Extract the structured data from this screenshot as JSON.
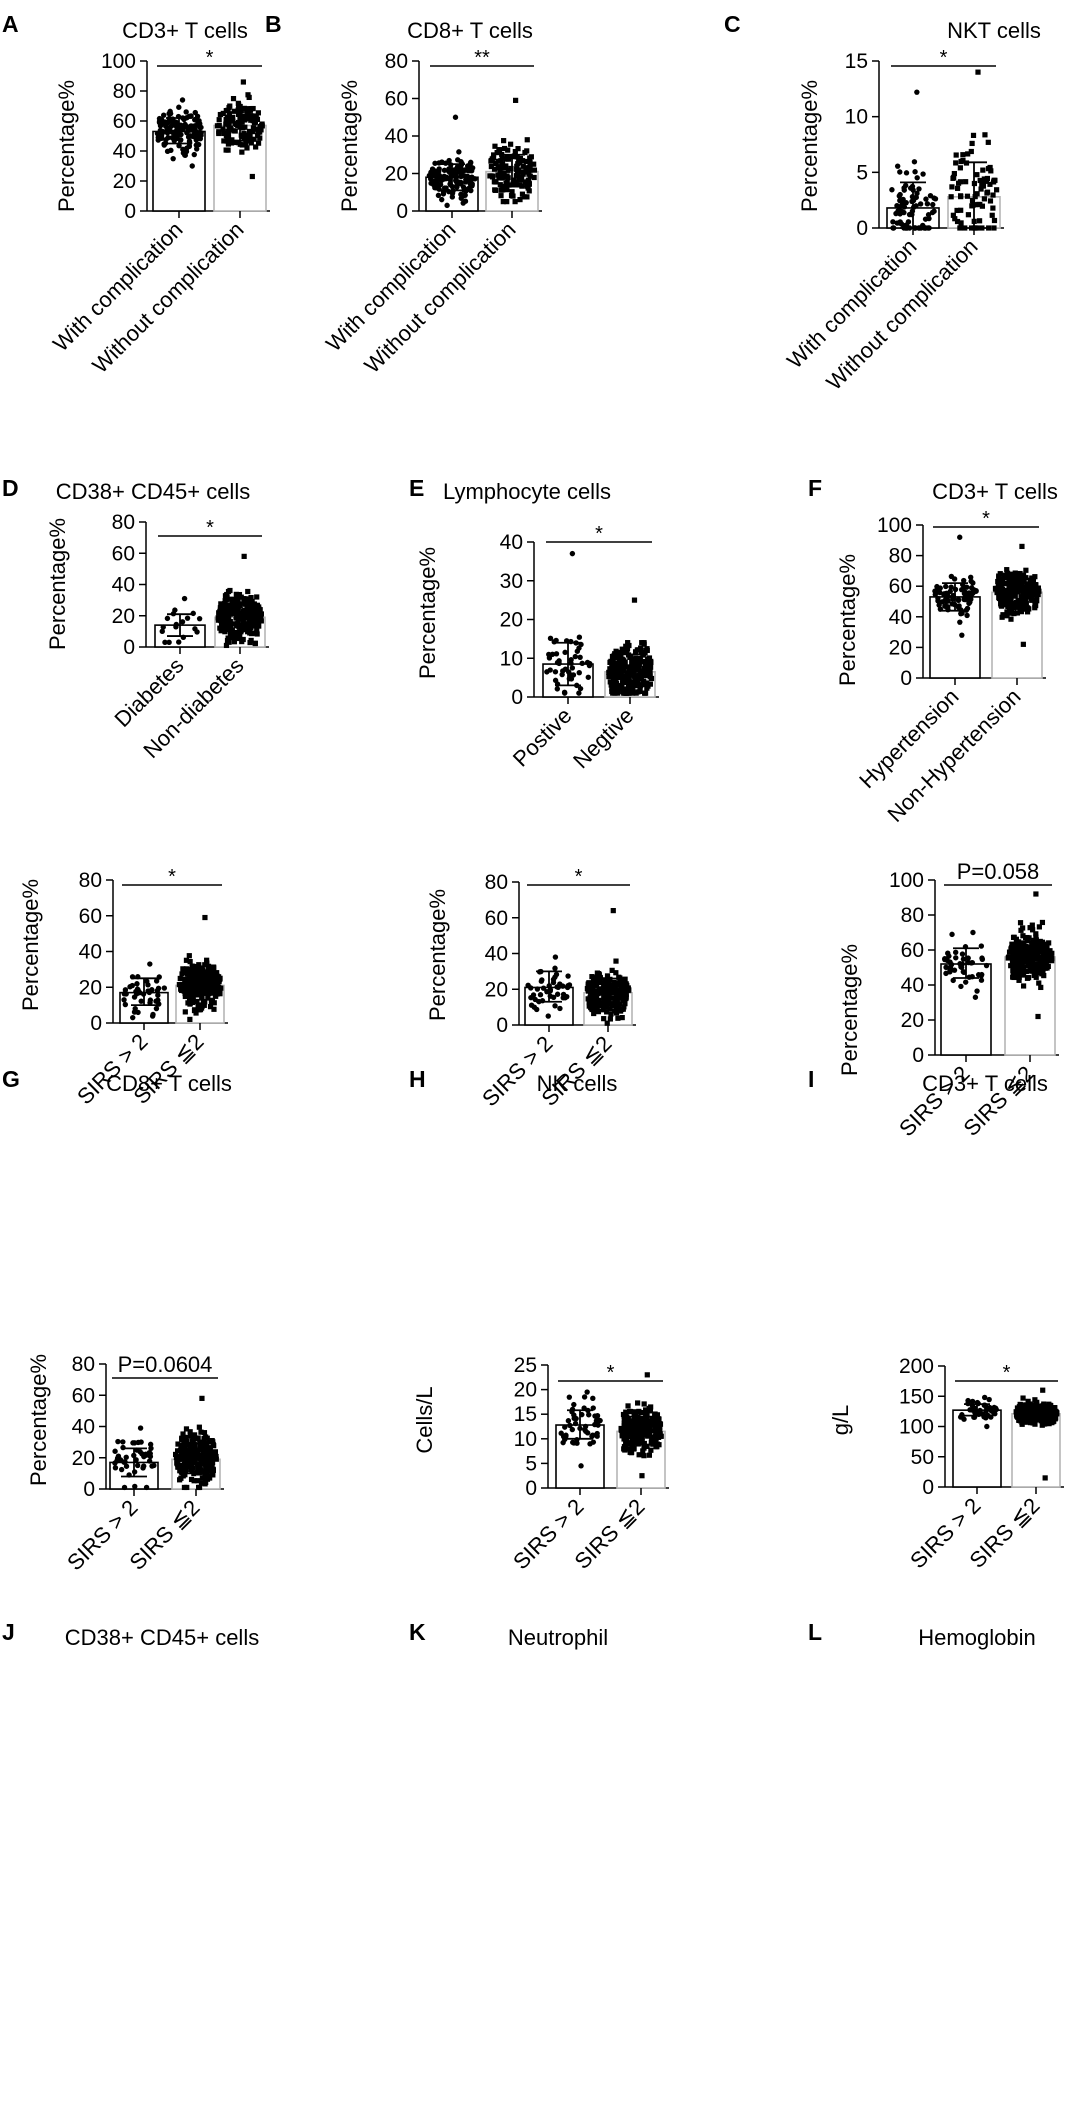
{
  "chart_data": [
    {
      "panel": "A",
      "type": "bar",
      "title": "CD3+ T cells",
      "ylabel": "Percentage%",
      "ylim": [
        0,
        100
      ],
      "yticks": [
        0,
        20,
        40,
        60,
        80,
        100
      ],
      "categories": [
        "With complication",
        "Without complication"
      ],
      "values": [
        53,
        57
      ],
      "sd_low": [
        45,
        47
      ],
      "sd_high": [
        62,
        66
      ],
      "points_range": [
        [
          30,
          74
        ],
        [
          23,
          86
        ]
      ],
      "points_n": [
        130,
        130
      ],
      "significance": "*"
    },
    {
      "panel": "B",
      "type": "bar",
      "title": "CD8+ T cells",
      "ylabel": "Percentage%",
      "ylim": [
        0,
        80
      ],
      "yticks": [
        0,
        20,
        40,
        60,
        80
      ],
      "categories": [
        "With complication",
        "Without complication"
      ],
      "values": [
        18,
        21
      ],
      "sd_low": [
        11,
        13
      ],
      "sd_high": [
        25,
        30
      ],
      "points_range": [
        [
          3,
          50
        ],
        [
          5,
          59
        ]
      ],
      "points_n": [
        130,
        130
      ],
      "significance": "**"
    },
    {
      "panel": "C",
      "type": "bar",
      "title": "NKT cells",
      "ylabel": "Percentage%",
      "ylim": [
        0,
        15
      ],
      "yticks": [
        0,
        5,
        10,
        15
      ],
      "categories": [
        "With complication",
        "Without complication"
      ],
      "values": [
        1.8,
        2.8
      ],
      "sd_low": [
        0,
        0
      ],
      "sd_high": [
        4.1,
        5.9
      ],
      "points_range": [
        [
          0,
          12.2
        ],
        [
          0,
          14
        ]
      ],
      "points_n": [
        80,
        80
      ],
      "significance": "*"
    },
    {
      "panel": "D",
      "type": "bar",
      "title": "CD38+ CD45+ cells",
      "ylabel": "Percentage%",
      "ylim": [
        0,
        80
      ],
      "yticks": [
        0,
        20,
        40,
        60,
        80
      ],
      "categories": [
        "Diabetes",
        "Non-diabetes"
      ],
      "values": [
        14,
        19
      ],
      "sd_low": [
        7,
        10
      ],
      "sd_high": [
        21,
        28
      ],
      "points_range": [
        [
          3,
          31
        ],
        [
          1,
          58
        ]
      ],
      "points_n": [
        18,
        230
      ],
      "significance": "*"
    },
    {
      "panel": "E",
      "type": "bar",
      "title": "Lymphocyte cells",
      "ylabel": "Percentage%",
      "ylim": [
        0,
        40
      ],
      "yticks": [
        0,
        10,
        20,
        30,
        40
      ],
      "categories": [
        "Postive",
        "Negtive"
      ],
      "values": [
        8.5,
        6.5
      ],
      "sd_low": [
        3,
        2.5
      ],
      "sd_high": [
        14,
        11
      ],
      "points_range": [
        [
          1,
          37
        ],
        [
          1,
          25
        ]
      ],
      "points_n": [
        50,
        230
      ],
      "significance": "*"
    },
    {
      "panel": "F",
      "type": "bar",
      "title": "CD3+ T cells",
      "ylabel": "Percentage%",
      "ylim": [
        0,
        100
      ],
      "yticks": [
        0,
        20,
        40,
        60,
        80,
        100
      ],
      "categories": [
        "Hypertension",
        "Non-Hypertension"
      ],
      "values": [
        53,
        56
      ],
      "sd_low": [
        44,
        47
      ],
      "sd_high": [
        62,
        65
      ],
      "points_range": [
        [
          28,
          92
        ],
        [
          22,
          86
        ]
      ],
      "points_n": [
        80,
        230
      ],
      "significance": "*"
    },
    {
      "panel": "G",
      "type": "bar",
      "title": "CD8+ T cells",
      "ylabel": "Percentage%",
      "ylim": [
        0,
        80
      ],
      "yticks": [
        0,
        20,
        40,
        60,
        80
      ],
      "categories": [
        "SIRS > 2",
        "SIRS ≦2"
      ],
      "values": [
        17,
        21
      ],
      "sd_low": [
        10,
        13
      ],
      "sd_high": [
        25,
        29
      ],
      "points_range": [
        [
          3,
          33
        ],
        [
          2,
          59
        ]
      ],
      "points_n": [
        45,
        240
      ],
      "significance": "*"
    },
    {
      "panel": "H",
      "type": "bar",
      "title": "NK cells",
      "ylabel": "Percentage%",
      "ylim": [
        0,
        80
      ],
      "yticks": [
        0,
        20,
        40,
        60,
        80
      ],
      "categories": [
        "SIRS > 2",
        "SIRS ≦2"
      ],
      "values": [
        21,
        18
      ],
      "sd_low": [
        13,
        10
      ],
      "sd_high": [
        30,
        26
      ],
      "points_range": [
        [
          5,
          38
        ],
        [
          1,
          64
        ]
      ],
      "points_n": [
        45,
        240
      ],
      "significance": "*"
    },
    {
      "panel": "I",
      "type": "bar",
      "title": "CD3+ T cells",
      "ylabel": "Percentage%",
      "ylim": [
        0,
        100
      ],
      "yticks": [
        0,
        20,
        40,
        60,
        80,
        100
      ],
      "categories": [
        "SIRS > 2",
        "SIRS ≦2"
      ],
      "values": [
        52,
        56
      ],
      "sd_low": [
        44,
        47
      ],
      "sd_high": [
        61,
        65
      ],
      "points_range": [
        [
          33,
          70
        ],
        [
          22,
          92
        ]
      ],
      "points_n": [
        45,
        240
      ],
      "significance": "P=0.058"
    },
    {
      "panel": "J",
      "type": "bar",
      "title": "CD38+ CD45+ cells",
      "ylabel": "Percentage%",
      "ylim": [
        0,
        80
      ],
      "yticks": [
        0,
        20,
        40,
        60,
        80
      ],
      "categories": [
        "SIRS > 2",
        "SIRS ≦2"
      ],
      "values": [
        17,
        19
      ],
      "sd_low": [
        8,
        10
      ],
      "sd_high": [
        26,
        29
      ],
      "points_range": [
        [
          1,
          39
        ],
        [
          1,
          58
        ]
      ],
      "points_n": [
        45,
        240
      ],
      "significance": "P=0.0604"
    },
    {
      "panel": "K",
      "type": "bar",
      "title": "Neutrophil",
      "ylabel": "Cells/L",
      "ylim": [
        0,
        25
      ],
      "yticks": [
        0,
        5,
        10,
        15,
        20,
        25
      ],
      "categories": [
        "SIRS > 2",
        "SIRS ≦2"
      ],
      "values": [
        12.8,
        11.5
      ],
      "sd_low": [
        10,
        8.8
      ],
      "sd_high": [
        15.8,
        14.5
      ],
      "points_range": [
        [
          4.5,
          19.5
        ],
        [
          2.5,
          23
        ]
      ],
      "points_n": [
        50,
        240
      ],
      "significance": "*"
    },
    {
      "panel": "L",
      "type": "bar",
      "title": "Hemoglobin",
      "ylabel": "g/L",
      "ylim": [
        0,
        200
      ],
      "yticks": [
        0,
        50,
        100,
        150,
        200
      ],
      "categories": [
        "SIRS > 2",
        "SIRS ≦2"
      ],
      "values": [
        127,
        121
      ],
      "sd_low": [
        118,
        110
      ],
      "sd_high": [
        137,
        132
      ],
      "points_range": [
        [
          100,
          148
        ],
        [
          15,
          160
        ]
      ],
      "points_n": [
        45,
        240
      ],
      "significance": "*"
    }
  ]
}
